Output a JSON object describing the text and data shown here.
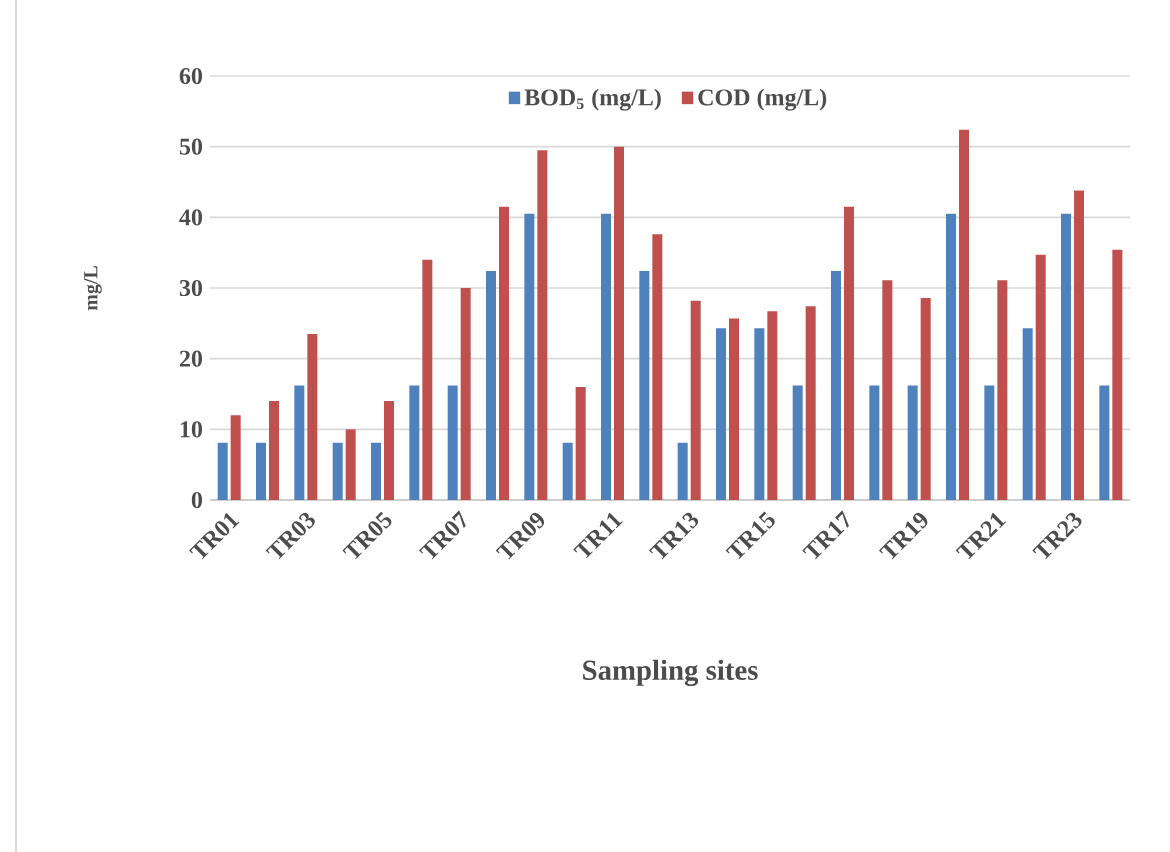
{
  "chart_data": {
    "type": "bar",
    "xlabel": "Sampling sites",
    "ylabel": "mg/L",
    "categories": [
      "TR01",
      null,
      "TR03",
      null,
      "TR05",
      null,
      "TR07",
      null,
      "TR09",
      null,
      "TR11",
      null,
      "TR13",
      null,
      "TR15",
      null,
      "TR17",
      null,
      "TR19",
      null,
      "TR21",
      null,
      "TR23",
      null
    ],
    "series": [
      {
        "name": "BOD$_{5}$ (mg/L)",
        "color": "#4f81bd",
        "values": [
          8.1,
          8.1,
          16.2,
          8.1,
          8.1,
          16.2,
          16.2,
          32.4,
          40.5,
          8.1,
          40.5,
          32.4,
          8.1,
          24.3,
          24.3,
          16.2,
          32.4,
          16.2,
          16.2,
          40.5,
          16.2,
          24.3,
          40.5,
          16.2
        ]
      },
      {
        "name": "COD (mg/L)",
        "color": "#c0504d",
        "values": [
          12,
          14,
          23.5,
          10,
          14,
          34,
          30,
          41.5,
          49.5,
          16,
          50,
          37.6,
          28.2,
          25.7,
          26.7,
          27.4,
          41.5,
          31.1,
          28.6,
          52.4,
          31.1,
          34.7,
          43.8,
          35.4
        ]
      }
    ],
    "ylim": [
      0,
      60
    ],
    "yticks": [
      0,
      10,
      20,
      30,
      40,
      50,
      60
    ],
    "grid": "y",
    "legend": "top"
  }
}
